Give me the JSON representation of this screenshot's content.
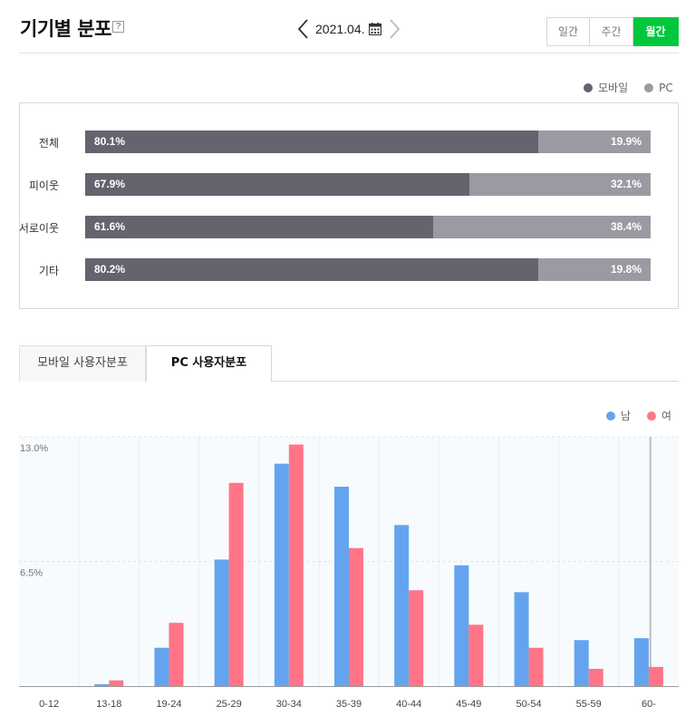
{
  "header": {
    "title": "기기별 분포",
    "help_label": "?",
    "date": "2021.04.",
    "periods": [
      {
        "label": "일간",
        "active": false
      },
      {
        "label": "주간",
        "active": false
      },
      {
        "label": "월간",
        "active": true
      }
    ]
  },
  "icons": {
    "prev": "chevron-left-icon",
    "next": "chevron-right-icon",
    "calendar": "calendar-icon"
  },
  "colors": {
    "mobile": "#63646e",
    "pc": "#9a9aa3",
    "male": "#64a4ef",
    "female": "#ff7587",
    "accent": "#00c73c"
  },
  "device_legend": {
    "mobile": "모바일",
    "pc": "PC"
  },
  "device_rows": [
    {
      "label": "전체",
      "mobile": 80.1,
      "pc": 19.9,
      "mobile_text": "80.1%",
      "pc_text": "19.9%"
    },
    {
      "label": "피이웃",
      "mobile": 67.9,
      "pc": 32.1,
      "mobile_text": "67.9%",
      "pc_text": "32.1%"
    },
    {
      "label": "서로이웃",
      "mobile": 61.6,
      "pc": 38.4,
      "mobile_text": "61.6%",
      "pc_text": "38.4%"
    },
    {
      "label": "기타",
      "mobile": 80.2,
      "pc": 19.8,
      "mobile_text": "80.2%",
      "pc_text": "19.8%"
    }
  ],
  "tabs": [
    {
      "label": "모바일 사용자분포",
      "active": false
    },
    {
      "label": "PC 사용자분포",
      "active": true
    }
  ],
  "gender_legend": {
    "male": "남",
    "female": "여"
  },
  "chart_data": {
    "type": "bar",
    "categories": [
      "0-12",
      "13-18",
      "19-24",
      "25-29",
      "30-34",
      "35-39",
      "40-44",
      "45-49",
      "50-54",
      "55-59",
      "60-"
    ],
    "series": [
      {
        "name": "남",
        "values": [
          0.0,
          0.1,
          2.0,
          6.6,
          11.6,
          10.4,
          8.4,
          6.3,
          4.9,
          2.4,
          2.5
        ]
      },
      {
        "name": "여",
        "values": [
          0.0,
          0.3,
          3.3,
          10.6,
          12.6,
          7.2,
          5.0,
          3.2,
          2.0,
          0.9,
          1.0
        ]
      }
    ],
    "yticks": [
      "13.0%",
      "6.5%"
    ],
    "ytick_values": [
      13.0,
      6.5
    ],
    "ylim": [
      0,
      13.0
    ],
    "grid": true,
    "legend": "top-right"
  }
}
